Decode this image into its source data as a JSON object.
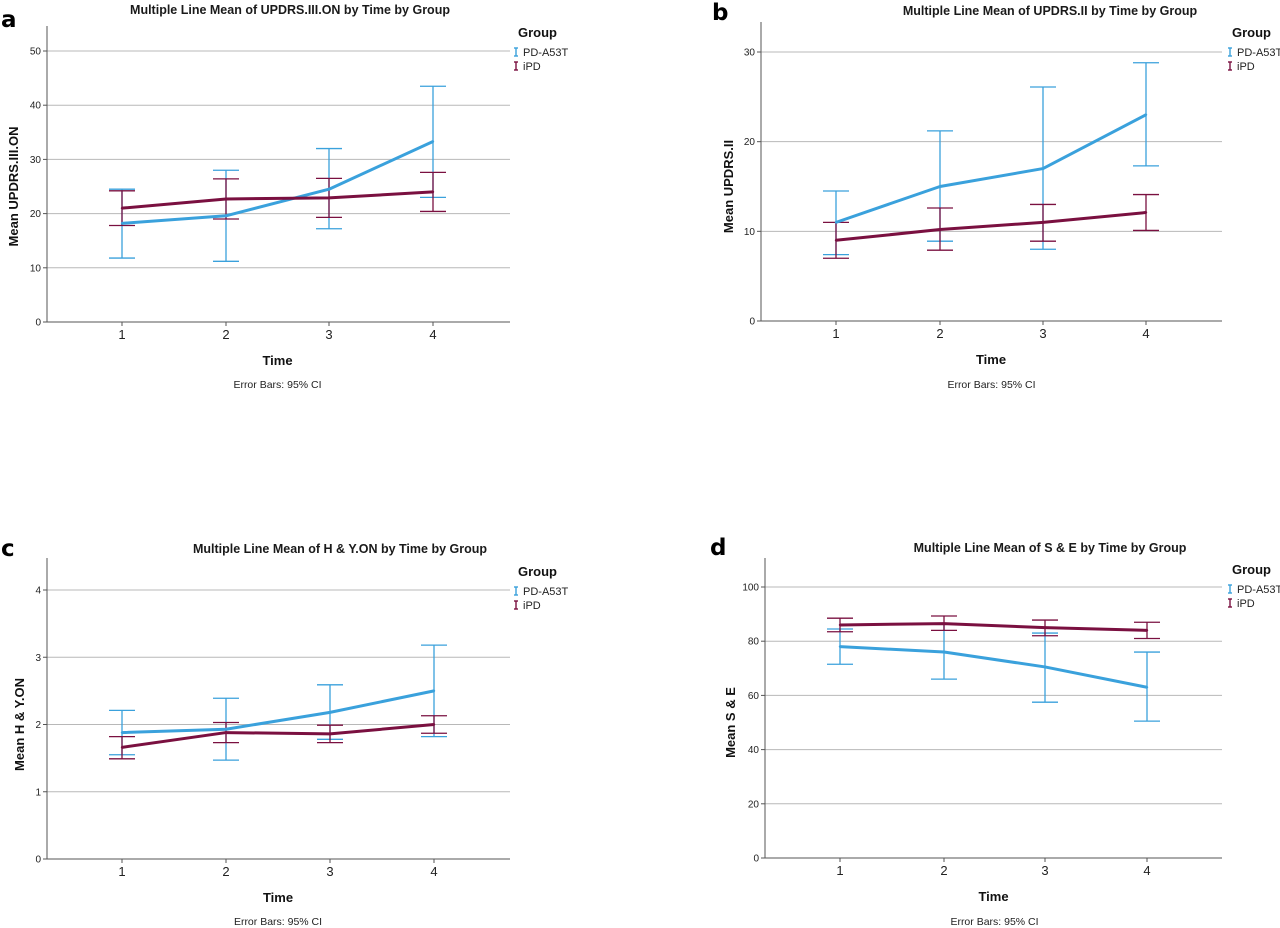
{
  "series_colors": [
    "#3aa1dc",
    "#7a1040"
  ],
  "chart_data": [
    {
      "panel": "a",
      "type": "line",
      "title": "Multiple Line Mean of UPDRS.III.ON by Time by Group",
      "xlabel": "Time",
      "ylabel": "Mean UPDRS.III.ON",
      "categories": [
        "1",
        "2",
        "3",
        "4"
      ],
      "ylim": [
        0,
        55
      ],
      "yticks": [
        0,
        10,
        20,
        30,
        40,
        50
      ],
      "grid": true,
      "legend": {
        "title": "Group",
        "position": "top-right"
      },
      "note": "Error Bars: 95% CI",
      "series": [
        {
          "name": "PD-A53T",
          "values": [
            18.2,
            19.6,
            24.5,
            33.3
          ],
          "ci_low": [
            11.8,
            11.2,
            17.2,
            23.0
          ],
          "ci_high": [
            24.5,
            28.0,
            32.0,
            43.5
          ]
        },
        {
          "name": "iPD",
          "values": [
            21.0,
            22.7,
            22.9,
            24.0
          ],
          "ci_low": [
            17.8,
            19.0,
            19.3,
            20.4
          ],
          "ci_high": [
            24.2,
            26.4,
            26.5,
            27.6
          ]
        }
      ]
    },
    {
      "panel": "b",
      "type": "line",
      "title": "Multiple Line Mean of UPDRS.II by Time by Group",
      "xlabel": "Time",
      "ylabel": "Mean UPDRS.II",
      "categories": [
        "1",
        "2",
        "3",
        "4"
      ],
      "ylim": [
        0,
        33
      ],
      "yticks": [
        0,
        10,
        20,
        30
      ],
      "grid": true,
      "legend": {
        "title": "Group",
        "position": "top-right"
      },
      "note": "Error Bars: 95% CI",
      "series": [
        {
          "name": "PD-A53T",
          "values": [
            11.0,
            15.0,
            17.0,
            23.0
          ],
          "ci_low": [
            7.4,
            8.9,
            8.0,
            17.3
          ],
          "ci_high": [
            14.5,
            21.2,
            26.1,
            28.8
          ]
        },
        {
          "name": "iPD",
          "values": [
            9.0,
            10.2,
            11.0,
            12.1
          ],
          "ci_low": [
            7.0,
            7.9,
            8.9,
            10.1
          ],
          "ci_high": [
            11.0,
            12.6,
            13.0,
            14.1
          ]
        }
      ]
    },
    {
      "panel": "c",
      "type": "line",
      "title": "Multiple Line Mean of H & Y.ON by Time by Group",
      "xlabel": "Time",
      "ylabel": "Mean H & Y.ON",
      "categories": [
        "1",
        "2",
        "3",
        "4"
      ],
      "ylim": [
        0,
        4.45
      ],
      "yticks": [
        0,
        1,
        2,
        3,
        4
      ],
      "grid": true,
      "legend": {
        "title": "Group",
        "position": "top-right"
      },
      "note": "Error Bars: 95% CI",
      "series": [
        {
          "name": "PD-A53T",
          "values": [
            1.88,
            1.93,
            2.18,
            2.5
          ],
          "ci_low": [
            1.55,
            1.47,
            1.78,
            1.82
          ],
          "ci_high": [
            2.21,
            2.39,
            2.59,
            3.18
          ]
        },
        {
          "name": "iPD",
          "values": [
            1.66,
            1.88,
            1.86,
            2.0
          ],
          "ci_low": [
            1.49,
            1.73,
            1.73,
            1.87
          ],
          "ci_high": [
            1.82,
            2.03,
            1.99,
            2.13
          ]
        }
      ]
    },
    {
      "panel": "d",
      "type": "line",
      "title": "Multiple Line Mean of S & E by Time by Group",
      "xlabel": "Time",
      "ylabel": "Mean S & E",
      "categories": [
        "1",
        "2",
        "3",
        "4"
      ],
      "ylim": [
        0,
        110
      ],
      "yticks": [
        0,
        20,
        40,
        60,
        80,
        100
      ],
      "grid": true,
      "legend": {
        "title": "Group",
        "position": "top-right"
      },
      "note": "Error Bars: 95% CI",
      "series": [
        {
          "name": "PD-A53T",
          "values": [
            78.0,
            76.0,
            70.5,
            63.0
          ],
          "ci_low": [
            71.5,
            66.0,
            57.5,
            50.5
          ],
          "ci_high": [
            84.5,
            86.5,
            83.0,
            76.0
          ]
        },
        {
          "name": "iPD",
          "values": [
            86.0,
            86.5,
            85.0,
            84.0
          ],
          "ci_low": [
            83.5,
            84.0,
            82.0,
            81.0
          ],
          "ci_high": [
            88.5,
            89.3,
            87.8,
            87.0
          ]
        }
      ]
    }
  ]
}
